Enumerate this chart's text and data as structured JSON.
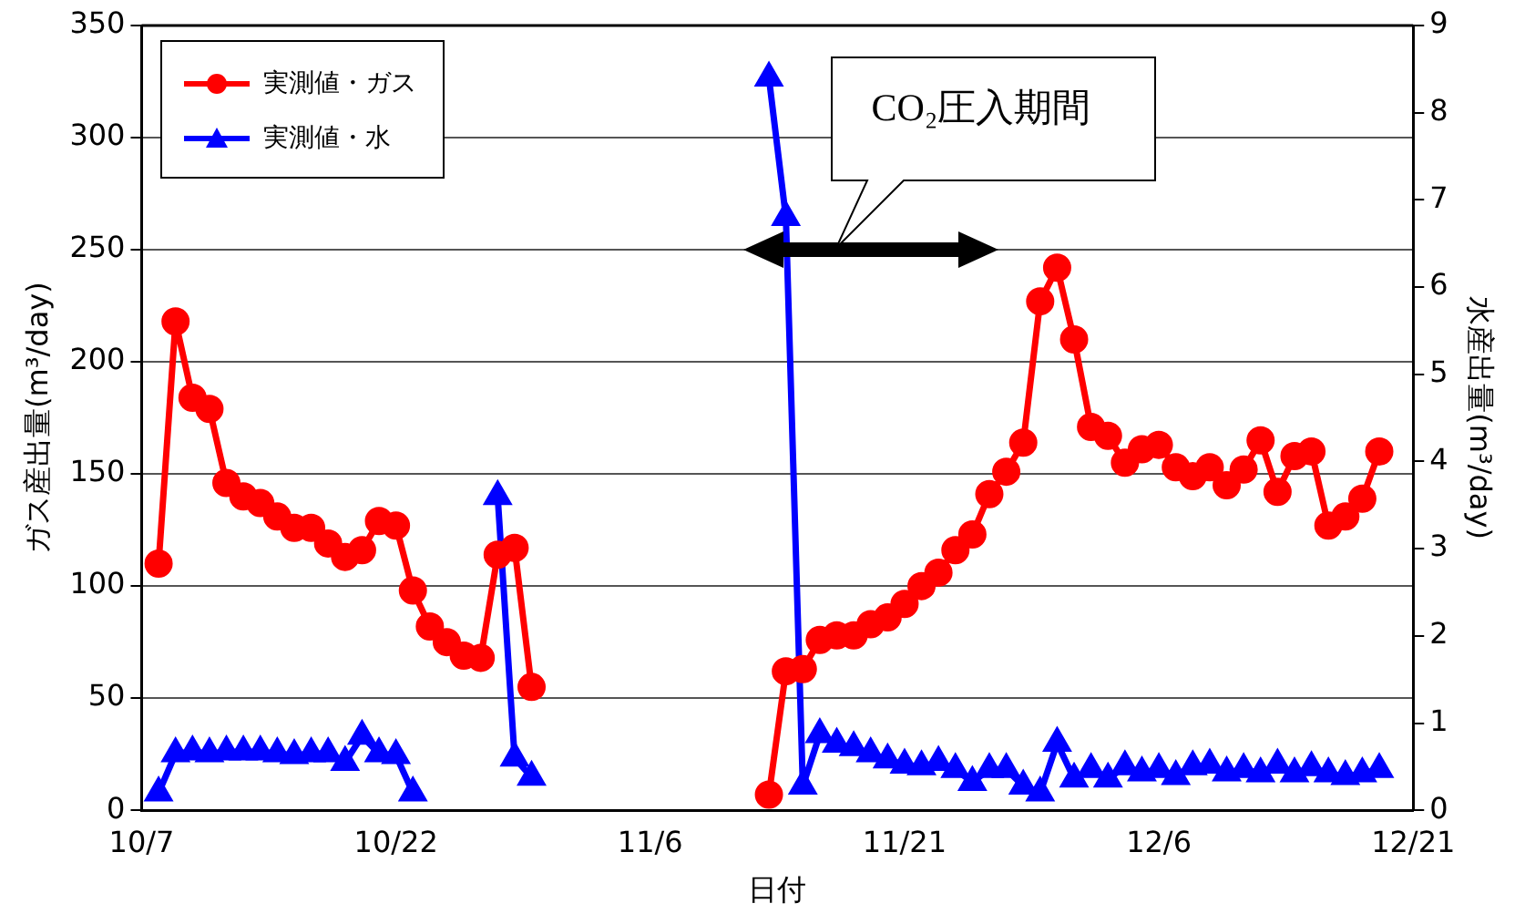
{
  "chart_data": {
    "type": "line",
    "xlabel": "日付",
    "ylabel": "ガス産出量(m³/day)",
    "y2label": "水産出量(m³/day)",
    "xlim": [
      "--10-07",
      "--12-21"
    ],
    "xticks": [
      {
        "value": "--10-07",
        "label": "10/7"
      },
      {
        "value": "--10-22",
        "label": "10/22"
      },
      {
        "value": "--11-06",
        "label": "11/6"
      },
      {
        "value": "--11-21",
        "label": "11/21"
      },
      {
        "value": "--12-06",
        "label": "12/6"
      },
      {
        "value": "--12-21",
        "label": "12/21"
      }
    ],
    "ylim": [
      0,
      350
    ],
    "yticks": [
      0,
      50,
      100,
      150,
      200,
      250,
      300,
      350
    ],
    "y2lim": [
      0,
      9
    ],
    "y2ticks": [
      0,
      1,
      2,
      3,
      4,
      5,
      6,
      7,
      8,
      9
    ],
    "grid": "y",
    "legend": "top left",
    "line_style": "solid",
    "series": [
      {
        "name": "実測値・ガス",
        "color": "#ff0000",
        "marker": "circle",
        "x": [
          "--10-08",
          "--10-09",
          "--10-10",
          "--10-11",
          "--10-12",
          "--10-13",
          "--10-14",
          "--10-15",
          "--10-16",
          "--10-17",
          "--10-18",
          "--10-19",
          "--10-20",
          "--10-21",
          "--10-22",
          "--10-23",
          "--10-24",
          "--10-25",
          "--10-26",
          "--10-27",
          "--10-28",
          "--10-29",
          "--10-30",
          "--10-31",
          "--11-13",
          "--11-14",
          "--11-15",
          "--11-16",
          "--11-17",
          "--11-18",
          "--11-19",
          "--11-20",
          "--11-21",
          "--11-22",
          "--11-23",
          "--11-24",
          "--11-25",
          "--11-26",
          "--11-27",
          "--11-28",
          "--11-29",
          "--11-30",
          "--12-01",
          "--12-02",
          "--12-03",
          "--12-04",
          "--12-05",
          "--12-06",
          "--12-07",
          "--12-08",
          "--12-09",
          "--12-10",
          "--12-11",
          "--12-12",
          "--12-13",
          "--12-14",
          "--12-15",
          "--12-16",
          "--12-17",
          "--12-18",
          "--12-19"
        ],
        "values": [
          110,
          218,
          184,
          179,
          146,
          140,
          137,
          131,
          126,
          126,
          119,
          113,
          116,
          129,
          127,
          98,
          82,
          75,
          69,
          68,
          114,
          117,
          55,
          null,
          7,
          62,
          63,
          76,
          78,
          78,
          83,
          86,
          92,
          100,
          106,
          116,
          123,
          141,
          151,
          164,
          227,
          242,
          210,
          171,
          167,
          155,
          161,
          163,
          153,
          149,
          153,
          145,
          152,
          165,
          142,
          158,
          160,
          127,
          131,
          139,
          160
        ]
      },
      {
        "name": "実測値・水",
        "color": "#0000ff",
        "marker": "triangle",
        "axis": "y2",
        "x": [
          "--10-08",
          "--10-09",
          "--10-10",
          "--10-11",
          "--10-12",
          "--10-13",
          "--10-14",
          "--10-15",
          "--10-16",
          "--10-17",
          "--10-18",
          "--10-19",
          "--10-20",
          "--10-21",
          "--10-22",
          "--10-23",
          "--10-24",
          "--10-28",
          "--10-29",
          "--10-30",
          "--10-31",
          "--11-13",
          "--11-14",
          "--11-15",
          "--11-16",
          "--11-17",
          "--11-18",
          "--11-19",
          "--11-20",
          "--11-21",
          "--11-22",
          "--11-23",
          "--11-24",
          "--11-25",
          "--11-26",
          "--11-27",
          "--11-28",
          "--11-29",
          "--11-30",
          "--12-01",
          "--12-02",
          "--12-03",
          "--12-04",
          "--12-05",
          "--12-06",
          "--12-07",
          "--12-08",
          "--12-09",
          "--12-10",
          "--12-11",
          "--12-12",
          "--12-13",
          "--12-14",
          "--12-15",
          "--12-16",
          "--12-17",
          "--12-18",
          "--12-19"
        ],
        "values": [
          0.2,
          0.65,
          0.67,
          0.65,
          0.67,
          0.67,
          0.67,
          0.65,
          0.63,
          0.65,
          0.65,
          0.55,
          0.85,
          0.65,
          0.63,
          0.2,
          null,
          3.6,
          0.6,
          0.38,
          null,
          8.4,
          6.8,
          0.28,
          0.87,
          0.76,
          0.72,
          0.65,
          0.58,
          0.52,
          0.5,
          0.55,
          0.47,
          0.32,
          0.47,
          0.47,
          0.28,
          0.2,
          0.77,
          0.36,
          0.47,
          0.36,
          0.5,
          0.43,
          0.47,
          0.39,
          0.5,
          0.52,
          0.43,
          0.47,
          0.42,
          0.52,
          0.42,
          0.49,
          0.42,
          0.39,
          0.42,
          0.47
        ]
      }
    ],
    "annotations": [
      "CO₂圧入期間"
    ]
  }
}
